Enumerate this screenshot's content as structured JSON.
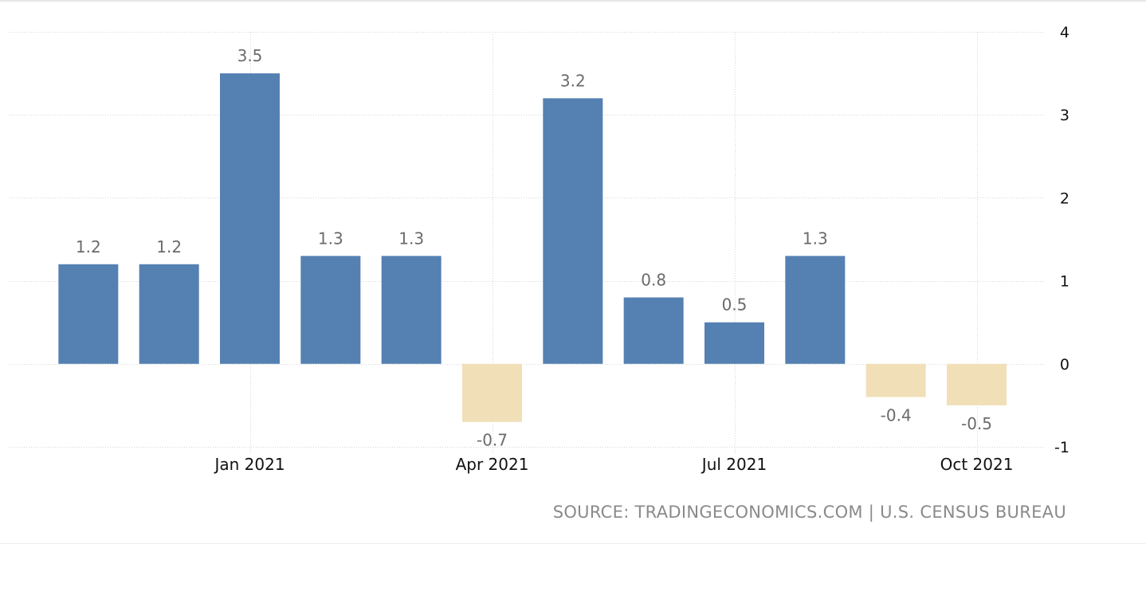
{
  "chart_data": {
    "type": "bar",
    "categories": [
      "Nov 2020",
      "Dec 2020",
      "Jan 2021",
      "Feb 2021",
      "Mar 2021",
      "Apr 2021",
      "May 2021",
      "Jun 2021",
      "Jul 2021",
      "Aug 2021",
      "Sep 2021",
      "Oct 2021"
    ],
    "values": [
      1.2,
      1.2,
      3.5,
      1.3,
      1.3,
      -0.7,
      3.2,
      0.8,
      0.5,
      1.3,
      -0.4,
      -0.5
    ],
    "data_labels": [
      "1.2",
      "1.2",
      "3.5",
      "1.3",
      "1.3",
      "-0.7",
      "3.2",
      "0.8",
      "0.5",
      "1.3",
      "-0.4",
      "-0.5"
    ],
    "x_tick_labels": [
      "Jan 2021",
      "Apr 2021",
      "Jul 2021",
      "Oct 2021"
    ],
    "y_ticks": [
      4,
      3,
      2,
      1,
      0,
      -1
    ],
    "ylim": [
      -1,
      4
    ],
    "y_axis_side": "right",
    "grid": true,
    "colors": {
      "positive": "#5580b2",
      "negative": "#f1dfb8",
      "grid": "#d6d6d6",
      "label": "#6b6b6b"
    },
    "source": "SOURCE: TRADINGECONOMICS.COM | U.S. CENSUS BUREAU"
  }
}
